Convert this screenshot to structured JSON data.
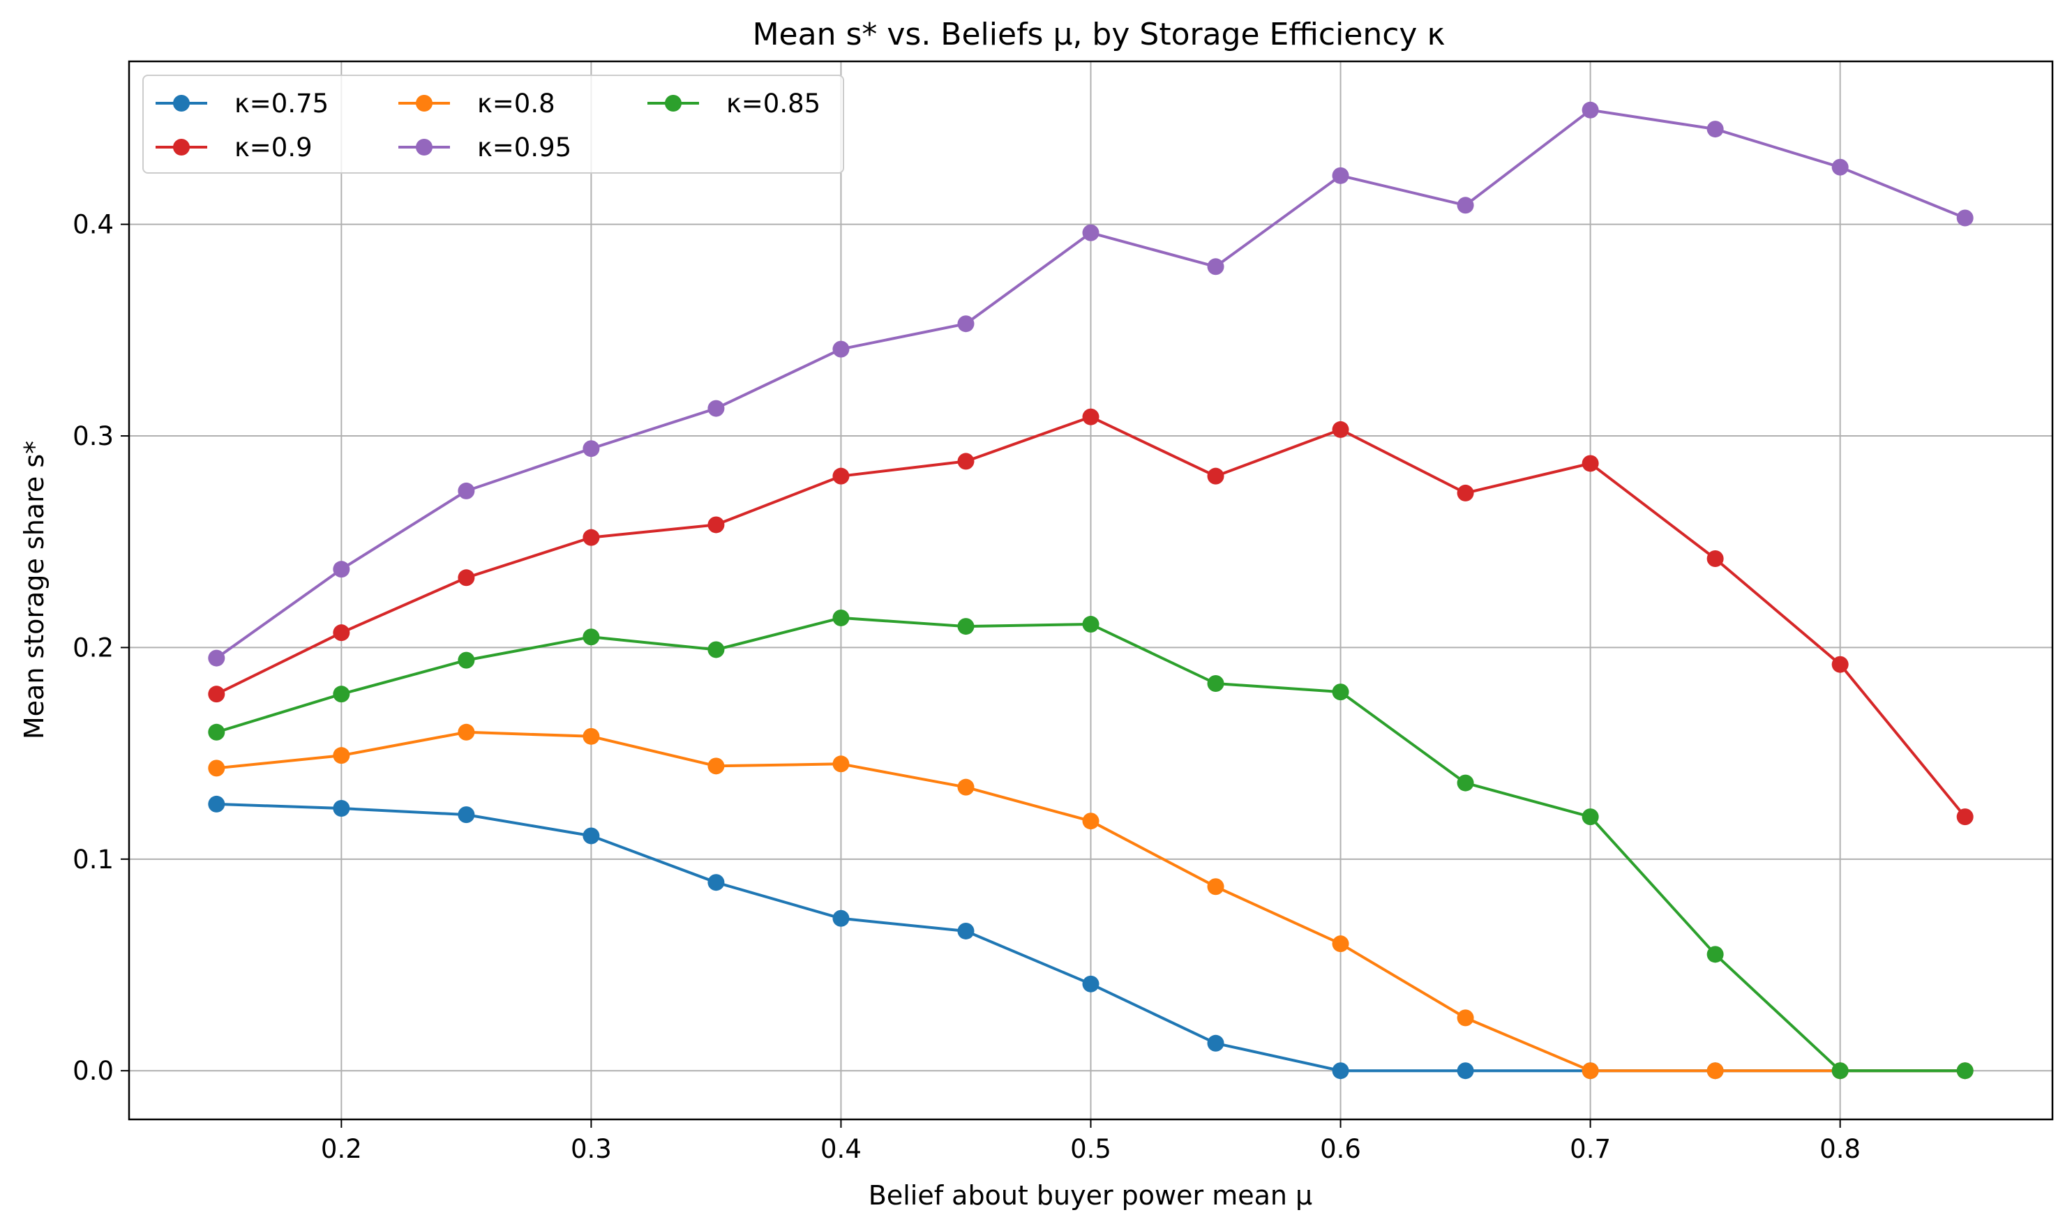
{
  "chart_data": {
    "type": "line",
    "title": "Mean s* vs. Beliefs μ, by Storage Efficiency κ",
    "xlabel": "Belief about buyer power mean μ",
    "ylabel": "Mean storage share s*",
    "x": [
      0.15,
      0.2,
      0.25,
      0.3,
      0.35,
      0.4,
      0.45,
      0.5,
      0.55,
      0.6,
      0.65,
      0.7,
      0.75,
      0.8,
      0.85
    ],
    "xlim": [
      0.115,
      0.885
    ],
    "ylim": [
      -0.023,
      0.477
    ],
    "xticks": [
      0.2,
      0.3,
      0.4,
      0.5,
      0.6,
      0.7,
      0.8
    ],
    "xtick_labels": [
      "0.2",
      "0.3",
      "0.4",
      "0.5",
      "0.6",
      "0.7",
      "0.8"
    ],
    "yticks": [
      0.0,
      0.1,
      0.2,
      0.3,
      0.4
    ],
    "ytick_labels": [
      "0.0",
      "0.1",
      "0.2",
      "0.3",
      "0.4"
    ],
    "grid": true,
    "legend_position": "upper left",
    "legend_columns": 3,
    "series": [
      {
        "name": "κ=0.75",
        "color": "#1f77b4",
        "values": [
          0.126,
          0.124,
          0.121,
          0.111,
          0.089,
          0.072,
          0.066,
          0.041,
          0.013,
          0.0,
          0.0,
          0.0,
          0.0,
          0.0,
          0.0
        ]
      },
      {
        "name": "κ=0.8",
        "color": "#ff7f0e",
        "values": [
          0.143,
          0.149,
          0.16,
          0.158,
          0.144,
          0.145,
          0.134,
          0.118,
          0.087,
          0.06,
          0.025,
          0.0,
          0.0,
          0.0,
          0.0
        ]
      },
      {
        "name": "κ=0.85",
        "color": "#2ca02c",
        "values": [
          0.16,
          0.178,
          0.194,
          0.205,
          0.199,
          0.214,
          0.21,
          0.211,
          0.183,
          0.179,
          0.136,
          0.12,
          0.055,
          0.0,
          0.0
        ]
      },
      {
        "name": "κ=0.9",
        "color": "#d62728",
        "values": [
          0.178,
          0.207,
          0.233,
          0.252,
          0.258,
          0.281,
          0.288,
          0.309,
          0.281,
          0.303,
          0.273,
          0.287,
          0.242,
          0.192,
          0.12
        ]
      },
      {
        "name": "κ=0.95",
        "color": "#9467bd",
        "values": [
          0.195,
          0.237,
          0.274,
          0.294,
          0.313,
          0.341,
          0.353,
          0.396,
          0.38,
          0.423,
          0.409,
          0.454,
          0.445,
          0.427,
          0.403
        ]
      }
    ]
  }
}
